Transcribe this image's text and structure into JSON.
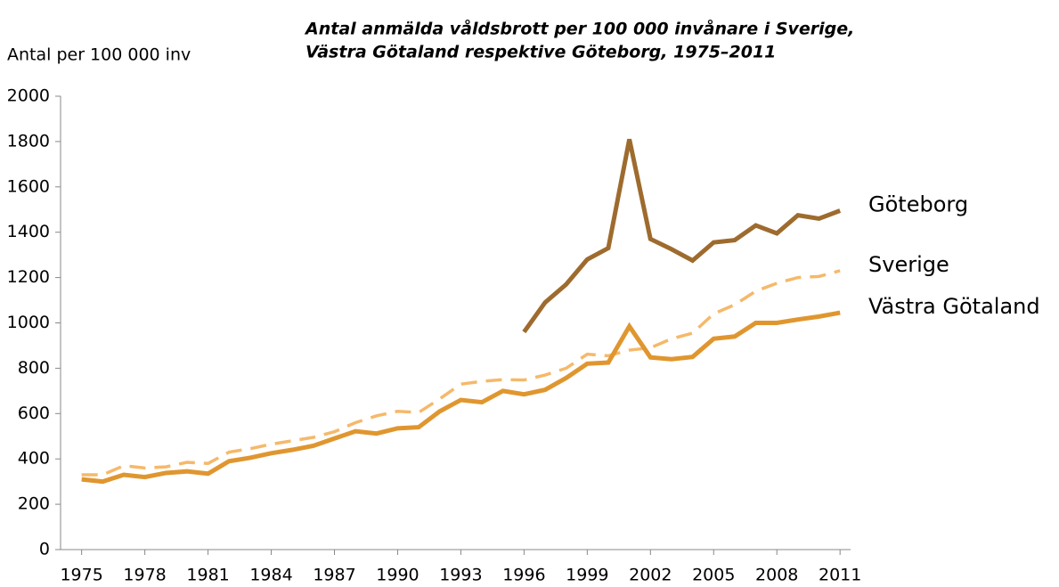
{
  "chart_data": {
    "type": "line",
    "title": [
      "Antal anmälda våldsbrott per 100 000 invånare i Sverige,",
      "Västra Götaland respektive Göteborg, 1975–2011"
    ],
    "y_label": "Antal per 100 000 inv",
    "x": [
      1975,
      1976,
      1977,
      1978,
      1979,
      1980,
      1981,
      1982,
      1983,
      1984,
      1985,
      1986,
      1987,
      1988,
      1989,
      1990,
      1991,
      1992,
      1993,
      1994,
      1995,
      1996,
      1997,
      1998,
      1999,
      2000,
      2001,
      2002,
      2003,
      2004,
      2005,
      2006,
      2007,
      2008,
      2009,
      2010,
      2011
    ],
    "series": [
      {
        "name": "Göteborg",
        "color": "#9e6b2e",
        "style": "solid",
        "values": [
          null,
          null,
          null,
          null,
          null,
          null,
          null,
          null,
          null,
          null,
          null,
          null,
          null,
          null,
          null,
          null,
          null,
          null,
          null,
          null,
          null,
          960,
          1090,
          1170,
          1280,
          1330,
          1810,
          1370,
          1325,
          1275,
          1355,
          1365,
          1430,
          1395,
          1475,
          1460,
          1495
        ]
      },
      {
        "name": "Sverige",
        "color": "#f5b96a",
        "style": "dashed",
        "values": [
          330,
          330,
          370,
          360,
          365,
          385,
          380,
          430,
          445,
          465,
          480,
          495,
          520,
          560,
          590,
          610,
          605,
          665,
          730,
          742,
          750,
          748,
          770,
          800,
          862,
          855,
          880,
          890,
          930,
          955,
          1040,
          1080,
          1140,
          1175,
          1200,
          1205,
          1230
        ]
      },
      {
        "name": "Västra Götaland",
        "color": "#e0962f",
        "style": "solid",
        "values": [
          310,
          300,
          330,
          320,
          338,
          345,
          335,
          390,
          405,
          425,
          440,
          458,
          490,
          522,
          512,
          535,
          540,
          610,
          660,
          650,
          700,
          685,
          705,
          757,
          820,
          825,
          985,
          848,
          840,
          850,
          930,
          940,
          1000,
          1000,
          1015,
          1028,
          1045
        ]
      }
    ],
    "xlim": [
      1974,
      2011.5
    ],
    "xticks": [
      1975,
      1978,
      1981,
      1984,
      1987,
      1990,
      1993,
      1996,
      1999,
      2002,
      2005,
      2008,
      2011
    ],
    "ylim": [
      0,
      2000
    ],
    "yticks": [
      0,
      200,
      400,
      600,
      800,
      1000,
      1200,
      1400,
      1600,
      1800,
      2000
    ],
    "grid": false
  }
}
